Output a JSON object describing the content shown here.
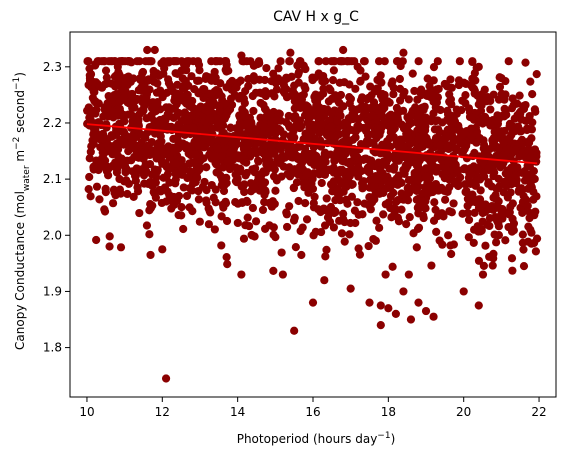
{
  "chart_data": {
    "type": "scatter",
    "title": "CAV H x g_C",
    "xlabel": {
      "text": "Photoperiod (hours day",
      "sup": "−1",
      "tail": ")"
    },
    "ylabel": {
      "prefix": "Canopy Conductance (mol",
      "sub": "water",
      "mid1": " m",
      "sup1": "−2",
      "mid2": " second",
      "sup2": "−1",
      "tail": ")"
    },
    "xlim": [
      9.55,
      22.45
    ],
    "ylim": [
      1.712,
      2.362
    ],
    "xticks": [
      10,
      12,
      14,
      16,
      18,
      20,
      22
    ],
    "xtick_labels": [
      "10",
      "12",
      "14",
      "16",
      "18",
      "20",
      "22"
    ],
    "yticks": [
      1.8,
      1.9,
      2.0,
      2.1,
      2.2,
      2.3
    ],
    "ytick_labels": [
      "1.8",
      "1.9",
      "2.0",
      "2.1",
      "2.2",
      "2.3"
    ],
    "grid": false,
    "legend": "none",
    "point_color": "#8b0000",
    "line_color": "#ff0000",
    "series": [
      {
        "values_description_omitted": true,
        "core_band": {
          "x_range": [
            10.0,
            21.95
          ],
          "y_center_at_xmin": 2.2,
          "y_center_at_xmax": 2.13,
          "spread": 0.075
        },
        "outliers": [
          [
            12.1,
            1.745
          ],
          [
            15.5,
            1.83
          ],
          [
            16.0,
            1.88
          ],
          [
            17.0,
            1.905
          ],
          [
            17.5,
            1.88
          ],
          [
            17.8,
            1.875
          ],
          [
            17.8,
            1.84
          ],
          [
            18.0,
            1.87
          ],
          [
            18.2,
            1.86
          ],
          [
            18.4,
            1.9
          ],
          [
            18.6,
            1.85
          ],
          [
            18.8,
            1.88
          ],
          [
            19.0,
            1.865
          ],
          [
            19.2,
            1.855
          ],
          [
            20.0,
            1.9
          ],
          [
            20.4,
            1.875
          ],
          [
            15.2,
            1.93
          ],
          [
            16.3,
            1.92
          ],
          [
            12.0,
            1.975
          ],
          [
            10.6,
            1.98
          ],
          [
            21.8,
            1.985
          ],
          [
            21.6,
            1.945
          ],
          [
            11.6,
            2.33
          ],
          [
            11.8,
            2.33
          ],
          [
            14.1,
            2.32
          ],
          [
            15.4,
            2.325
          ],
          [
            16.8,
            2.33
          ],
          [
            18.4,
            2.325
          ],
          [
            20.4,
            2.3
          ],
          [
            21.0,
            2.28
          ],
          [
            21.6,
            2.225
          ],
          [
            21.9,
            2.22
          ]
        ]
      }
    ],
    "trendline": {
      "x": [
        10.0,
        21.95
      ],
      "y": [
        2.198,
        2.128
      ]
    }
  }
}
